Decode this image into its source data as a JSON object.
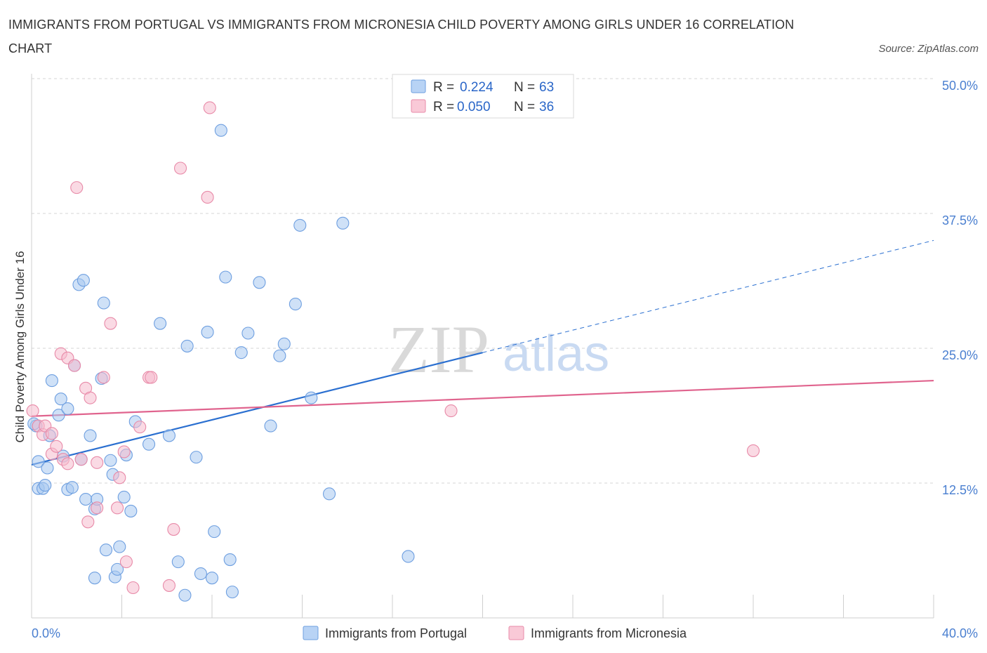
{
  "header": {
    "title": "IMMIGRANTS FROM PORTUGAL VS IMMIGRANTS FROM MICRONESIA CHILD POVERTY AMONG GIRLS UNDER 16 CORRELATION CHART",
    "source": "Source: ZipAtlas.com"
  },
  "watermark": {
    "zip": "ZIP",
    "atlas": "atlas"
  },
  "chart_data": {
    "type": "scatter",
    "title": "IMMIGRANTS FROM PORTUGAL VS IMMIGRANTS FROM MICRONESIA CHILD POVERTY AMONG GIRLS UNDER 16 CORRELATION CHART",
    "ylabel": "Child Poverty Among Girls Under 16",
    "xlim": [
      0,
      40
    ],
    "ylim": [
      0,
      50
    ],
    "x_tick_labels": [
      "0.0%",
      "40.0%"
    ],
    "y_ticks": [
      12.5,
      25.0,
      37.5,
      50.0
    ],
    "y_tick_labels": [
      "12.5%",
      "25.0%",
      "37.5%",
      "50.0%"
    ],
    "grid": true,
    "legend": {
      "placement": "top-center",
      "rows": [
        {
          "r_label": "R =",
          "r_value": "0.224",
          "n_label": "N =",
          "n_value": "63"
        },
        {
          "r_label": "R =",
          "r_value": "0.050",
          "n_label": "N =",
          "n_value": "36"
        }
      ]
    },
    "series": [
      {
        "name": "Immigrants from Portugal",
        "color": "#a8c8f0",
        "stroke": "#6e9fe0",
        "line_color": "#2a6fd0",
        "trend": {
          "x0": 0,
          "y0": 14.2,
          "x1": 20,
          "y1": 24.6,
          "dash_to_x": 40,
          "dash_to_y": 35.0
        },
        "points": [
          [
            0.2,
            17.8
          ],
          [
            0.3,
            12.0
          ],
          [
            0.3,
            14.5
          ],
          [
            0.5,
            12.0
          ],
          [
            0.6,
            12.3
          ],
          [
            0.7,
            13.9
          ],
          [
            0.8,
            16.9
          ],
          [
            0.9,
            22.0
          ],
          [
            1.2,
            18.8
          ],
          [
            1.3,
            20.3
          ],
          [
            1.4,
            15.0
          ],
          [
            1.6,
            19.4
          ],
          [
            1.6,
            11.9
          ],
          [
            1.8,
            12.1
          ],
          [
            1.9,
            23.4
          ],
          [
            2.1,
            30.9
          ],
          [
            2.2,
            14.7
          ],
          [
            2.3,
            31.3
          ],
          [
            2.4,
            11.0
          ],
          [
            2.6,
            16.9
          ],
          [
            2.8,
            10.1
          ],
          [
            2.8,
            3.7
          ],
          [
            2.9,
            11.0
          ],
          [
            3.1,
            22.2
          ],
          [
            3.2,
            29.2
          ],
          [
            3.3,
            6.3
          ],
          [
            3.5,
            14.6
          ],
          [
            3.6,
            13.3
          ],
          [
            3.7,
            3.8
          ],
          [
            3.8,
            4.5
          ],
          [
            3.9,
            6.6
          ],
          [
            4.1,
            11.2
          ],
          [
            4.2,
            15.1
          ],
          [
            4.4,
            9.9
          ],
          [
            4.6,
            18.2
          ],
          [
            5.2,
            16.1
          ],
          [
            5.7,
            27.3
          ],
          [
            6.1,
            16.9
          ],
          [
            6.5,
            5.2
          ],
          [
            6.8,
            2.1
          ],
          [
            6.9,
            25.2
          ],
          [
            7.3,
            14.9
          ],
          [
            7.5,
            4.1
          ],
          [
            7.8,
            26.5
          ],
          [
            8.0,
            3.7
          ],
          [
            8.1,
            8.0
          ],
          [
            8.4,
            45.2
          ],
          [
            8.6,
            31.6
          ],
          [
            8.8,
            5.4
          ],
          [
            8.9,
            2.4
          ],
          [
            9.3,
            24.6
          ],
          [
            9.6,
            26.4
          ],
          [
            10.1,
            31.1
          ],
          [
            10.6,
            17.8
          ],
          [
            11.0,
            24.3
          ],
          [
            11.2,
            25.4
          ],
          [
            11.7,
            29.1
          ],
          [
            11.9,
            36.4
          ],
          [
            12.4,
            20.4
          ],
          [
            13.2,
            11.5
          ],
          [
            13.8,
            36.6
          ],
          [
            16.7,
            5.7
          ],
          [
            0.1,
            18.0
          ]
        ]
      },
      {
        "name": "Immigrants from Micronesia",
        "color": "#f6bccd",
        "stroke": "#e88aa8",
        "line_color": "#e0648e",
        "trend": {
          "x0": 0,
          "y0": 18.7,
          "x1": 40,
          "y1": 22.0
        },
        "points": [
          [
            0.05,
            19.2
          ],
          [
            0.3,
            17.8
          ],
          [
            0.5,
            17.0
          ],
          [
            0.6,
            17.8
          ],
          [
            0.9,
            17.1
          ],
          [
            0.9,
            15.2
          ],
          [
            1.1,
            15.9
          ],
          [
            1.3,
            24.5
          ],
          [
            1.4,
            14.7
          ],
          [
            1.6,
            24.1
          ],
          [
            1.6,
            14.3
          ],
          [
            1.9,
            23.4
          ],
          [
            2.0,
            39.9
          ],
          [
            2.2,
            14.7
          ],
          [
            2.4,
            21.3
          ],
          [
            2.5,
            8.9
          ],
          [
            2.6,
            20.4
          ],
          [
            2.9,
            10.2
          ],
          [
            2.9,
            14.4
          ],
          [
            3.2,
            22.3
          ],
          [
            3.5,
            27.3
          ],
          [
            3.8,
            10.2
          ],
          [
            3.9,
            13.0
          ],
          [
            4.1,
            15.4
          ],
          [
            4.2,
            5.2
          ],
          [
            4.5,
            2.8
          ],
          [
            4.8,
            17.7
          ],
          [
            5.2,
            22.3
          ],
          [
            5.3,
            22.3
          ],
          [
            6.1,
            3.0
          ],
          [
            6.3,
            8.2
          ],
          [
            6.6,
            41.7
          ],
          [
            7.8,
            39.0
          ],
          [
            7.9,
            47.3
          ],
          [
            18.6,
            19.2
          ],
          [
            32.0,
            15.5
          ]
        ]
      }
    ]
  }
}
